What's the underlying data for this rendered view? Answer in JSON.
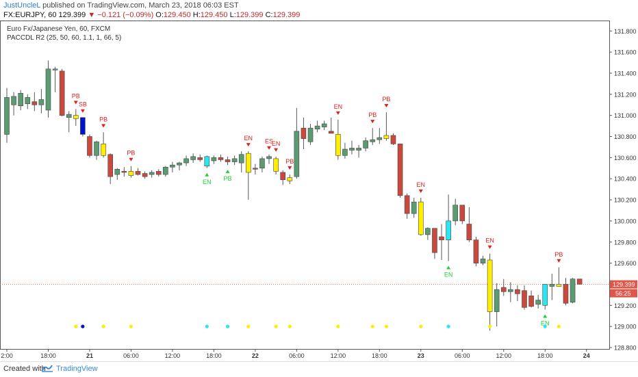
{
  "header": {
    "author": "JustUncleL",
    "published": "published on TradingView.com, March 23, 2018 06:03 EST",
    "symbol": "FX:EURJPY, 60",
    "last": "129.399",
    "change": "▼ −0.121 (−0.09%)",
    "open_label": "O:",
    "open": "129.450",
    "high_label": "H:",
    "high": "129.450",
    "low_label": "L:",
    "low": "129.399",
    "close_label": "C:",
    "close": "129.399"
  },
  "legend": {
    "instrument": "Euro Fx/Japanese Yen, 60, FXCM",
    "indicator": "PACCDL R2 (25, 50, 60, 1.1, 1, 66, 5)"
  },
  "footer": {
    "created": "Created with",
    "brand": "TradingView"
  },
  "colors": {
    "up": "#5b9b72",
    "down": "#c9493d",
    "yellow": "#ffee00",
    "cyan": "#29e6f0",
    "blue": "#0014c8",
    "sell_marker": "#e0201b",
    "buy_marker": "#1ed030",
    "price_line": "#e06050",
    "price_badge": "#e0574a"
  },
  "chart_data": {
    "type": "candlestick",
    "y_ticks": [
      "131.800",
      "131.600",
      "131.400",
      "131.200",
      "131.000",
      "130.800",
      "130.600",
      "130.400",
      "130.200",
      "130.000",
      "129.800",
      "129.600",
      "129.399",
      "129.200",
      "129.000",
      "128.800"
    ],
    "ylim": [
      128.8,
      131.86
    ],
    "x_ticks": [
      "2:00",
      "18:00",
      "21",
      "06:00",
      "12:00",
      "18:00",
      "22",
      "06:00",
      "12:00",
      "18:00",
      "23",
      "06:00",
      "12:00",
      "18:00",
      "24"
    ],
    "x_tick_bar_index": [
      0,
      6,
      12,
      18,
      24,
      30,
      36,
      42,
      48,
      54,
      60,
      66,
      72,
      78,
      84
    ],
    "last_price": "129.399",
    "time_badge": "56:25",
    "candles": [
      {
        "o": 130.82,
        "h": 131.26,
        "l": 130.74,
        "c": 131.17,
        "k": "up"
      },
      {
        "o": 131.1,
        "h": 131.22,
        "l": 131.0,
        "c": 131.18,
        "k": "up"
      },
      {
        "o": 131.09,
        "h": 131.24,
        "l": 131.05,
        "c": 131.21,
        "k": "up"
      },
      {
        "o": 131.11,
        "h": 131.2,
        "l": 131.06,
        "c": 131.17,
        "k": "up"
      },
      {
        "o": 131.1,
        "h": 131.22,
        "l": 131.04,
        "c": 131.13,
        "k": "down"
      },
      {
        "o": 131.1,
        "h": 131.25,
        "l": 131.02,
        "c": 131.15,
        "k": "up"
      },
      {
        "o": 131.05,
        "h": 131.52,
        "l": 130.98,
        "c": 131.44,
        "k": "up"
      },
      {
        "o": 131.44,
        "h": 131.46,
        "l": 131.22,
        "c": 131.43,
        "k": "up"
      },
      {
        "o": 131.42,
        "h": 131.44,
        "l": 130.99,
        "c": 131.0,
        "k": "down"
      },
      {
        "o": 130.98,
        "h": 131.04,
        "l": 130.84,
        "c": 131.01,
        "k": "up"
      },
      {
        "o": 131.0,
        "h": 131.06,
        "l": 130.9,
        "c": 130.97,
        "k": "yellow"
      },
      {
        "o": 130.98,
        "h": 130.98,
        "l": 130.8,
        "c": 130.82,
        "k": "blue"
      },
      {
        "o": 130.8,
        "h": 130.82,
        "l": 130.6,
        "c": 130.62,
        "k": "down"
      },
      {
        "o": 130.62,
        "h": 130.76,
        "l": 130.58,
        "c": 130.75,
        "k": "up"
      },
      {
        "o": 130.73,
        "h": 130.84,
        "l": 130.6,
        "c": 130.62,
        "k": "yellow"
      },
      {
        "o": 130.63,
        "h": 130.64,
        "l": 130.35,
        "c": 130.42,
        "k": "down"
      },
      {
        "o": 130.44,
        "h": 130.5,
        "l": 130.39,
        "c": 130.49,
        "k": "up"
      },
      {
        "o": 130.46,
        "h": 130.51,
        "l": 130.42,
        "c": 130.47,
        "k": "down"
      },
      {
        "o": 130.47,
        "h": 130.52,
        "l": 130.41,
        "c": 130.43,
        "k": "yellow"
      },
      {
        "o": 130.47,
        "h": 130.5,
        "l": 130.43,
        "c": 130.44,
        "k": "down"
      },
      {
        "o": 130.45,
        "h": 130.47,
        "l": 130.4,
        "c": 130.42,
        "k": "down"
      },
      {
        "o": 130.44,
        "h": 130.48,
        "l": 130.41,
        "c": 130.46,
        "k": "up"
      },
      {
        "o": 130.47,
        "h": 130.49,
        "l": 130.42,
        "c": 130.44,
        "k": "down"
      },
      {
        "o": 130.44,
        "h": 130.52,
        "l": 130.42,
        "c": 130.51,
        "k": "up"
      },
      {
        "o": 130.51,
        "h": 130.56,
        "l": 130.46,
        "c": 130.53,
        "k": "up"
      },
      {
        "o": 130.53,
        "h": 130.56,
        "l": 130.48,
        "c": 130.55,
        "k": "up"
      },
      {
        "o": 130.55,
        "h": 130.62,
        "l": 130.52,
        "c": 130.59,
        "k": "up"
      },
      {
        "o": 130.58,
        "h": 130.64,
        "l": 130.55,
        "c": 130.61,
        "k": "up"
      },
      {
        "o": 130.6,
        "h": 130.63,
        "l": 130.56,
        "c": 130.58,
        "k": "down"
      },
      {
        "o": 130.52,
        "h": 130.62,
        "l": 130.5,
        "c": 130.61,
        "k": "cyan"
      },
      {
        "o": 130.57,
        "h": 130.62,
        "l": 130.54,
        "c": 130.6,
        "k": "up"
      },
      {
        "o": 130.6,
        "h": 130.63,
        "l": 130.56,
        "c": 130.58,
        "k": "down"
      },
      {
        "o": 130.58,
        "h": 130.61,
        "l": 130.53,
        "c": 130.56,
        "k": "down"
      },
      {
        "o": 130.56,
        "h": 130.62,
        "l": 130.53,
        "c": 130.59,
        "k": "up"
      },
      {
        "o": 130.55,
        "h": 130.66,
        "l": 130.46,
        "c": 130.63,
        "k": "up"
      },
      {
        "o": 130.64,
        "h": 130.66,
        "l": 130.2,
        "c": 130.46,
        "k": "yellow"
      },
      {
        "o": 130.5,
        "h": 130.54,
        "l": 130.44,
        "c": 130.49,
        "k": "down"
      },
      {
        "o": 130.5,
        "h": 130.61,
        "l": 130.46,
        "c": 130.59,
        "k": "up"
      },
      {
        "o": 130.59,
        "h": 130.63,
        "l": 130.54,
        "c": 130.61,
        "k": "up"
      },
      {
        "o": 130.59,
        "h": 130.61,
        "l": 130.44,
        "c": 130.47,
        "k": "yellow"
      },
      {
        "o": 130.46,
        "h": 130.48,
        "l": 130.34,
        "c": 130.39,
        "k": "down"
      },
      {
        "o": 130.38,
        "h": 130.44,
        "l": 130.35,
        "c": 130.41,
        "k": "yellow"
      },
      {
        "o": 130.42,
        "h": 131.07,
        "l": 130.4,
        "c": 130.85,
        "k": "up"
      },
      {
        "o": 130.78,
        "h": 130.98,
        "l": 130.68,
        "c": 130.88,
        "k": "down"
      },
      {
        "o": 130.75,
        "h": 130.92,
        "l": 130.72,
        "c": 130.88,
        "k": "up"
      },
      {
        "o": 130.87,
        "h": 130.95,
        "l": 130.84,
        "c": 130.9,
        "k": "up"
      },
      {
        "o": 130.89,
        "h": 130.95,
        "l": 130.86,
        "c": 130.92,
        "k": "up"
      },
      {
        "o": 130.85,
        "h": 130.98,
        "l": 130.83,
        "c": 130.83,
        "k": "down"
      },
      {
        "o": 130.82,
        "h": 130.96,
        "l": 130.58,
        "c": 130.62,
        "k": "yellow"
      },
      {
        "o": 130.62,
        "h": 130.74,
        "l": 130.59,
        "c": 130.68,
        "k": "up"
      },
      {
        "o": 130.69,
        "h": 130.76,
        "l": 130.63,
        "c": 130.67,
        "k": "up"
      },
      {
        "o": 130.67,
        "h": 130.72,
        "l": 130.6,
        "c": 130.69,
        "k": "up"
      },
      {
        "o": 130.69,
        "h": 130.79,
        "l": 130.66,
        "c": 130.76,
        "k": "up"
      },
      {
        "o": 130.75,
        "h": 130.88,
        "l": 130.72,
        "c": 130.77,
        "k": "up"
      },
      {
        "o": 130.77,
        "h": 130.88,
        "l": 130.73,
        "c": 130.79,
        "k": "up"
      },
      {
        "o": 130.78,
        "h": 131.03,
        "l": 130.76,
        "c": 130.81,
        "k": "yellow"
      },
      {
        "o": 130.81,
        "h": 130.83,
        "l": 130.72,
        "c": 130.73,
        "k": "down"
      },
      {
        "o": 130.73,
        "h": 130.73,
        "l": 130.22,
        "c": 130.24,
        "k": "down"
      },
      {
        "o": 130.24,
        "h": 130.26,
        "l": 130.02,
        "c": 130.07,
        "k": "down"
      },
      {
        "o": 130.07,
        "h": 130.22,
        "l": 130.03,
        "c": 130.18,
        "k": "up"
      },
      {
        "o": 130.18,
        "h": 130.22,
        "l": 129.86,
        "c": 129.87,
        "k": "yellow"
      },
      {
        "o": 129.87,
        "h": 129.94,
        "l": 129.82,
        "c": 129.93,
        "k": "up"
      },
      {
        "o": 129.93,
        "h": 129.93,
        "l": 129.64,
        "c": 129.7,
        "k": "down"
      },
      {
        "o": 129.82,
        "h": 129.97,
        "l": 129.63,
        "c": 129.85,
        "k": "down"
      },
      {
        "o": 129.82,
        "h": 130.25,
        "l": 129.62,
        "c": 130.0,
        "k": "cyan"
      },
      {
        "o": 130.0,
        "h": 130.21,
        "l": 129.96,
        "c": 130.15,
        "k": "up"
      },
      {
        "o": 130.15,
        "h": 130.15,
        "l": 129.97,
        "c": 130.0,
        "k": "down"
      },
      {
        "o": 129.97,
        "h": 130.13,
        "l": 129.8,
        "c": 129.82,
        "k": "down"
      },
      {
        "o": 129.82,
        "h": 129.85,
        "l": 129.57,
        "c": 129.6,
        "k": "down"
      },
      {
        "o": 129.6,
        "h": 129.67,
        "l": 129.58,
        "c": 129.64,
        "k": "up"
      },
      {
        "o": 129.63,
        "h": 129.69,
        "l": 128.96,
        "c": 129.14,
        "k": "yellow"
      },
      {
        "o": 129.14,
        "h": 129.41,
        "l": 129.0,
        "c": 129.35,
        "k": "up"
      },
      {
        "o": 129.37,
        "h": 129.45,
        "l": 129.29,
        "c": 129.33,
        "k": "down"
      },
      {
        "o": 129.33,
        "h": 129.42,
        "l": 129.23,
        "c": 129.35,
        "k": "up"
      },
      {
        "o": 129.35,
        "h": 129.39,
        "l": 129.24,
        "c": 129.31,
        "k": "down"
      },
      {
        "o": 129.34,
        "h": 129.39,
        "l": 129.16,
        "c": 129.18,
        "k": "down"
      },
      {
        "o": 129.29,
        "h": 129.34,
        "l": 129.18,
        "c": 129.19,
        "k": "down"
      },
      {
        "o": 129.21,
        "h": 129.3,
        "l": 129.17,
        "c": 129.25,
        "k": "up"
      },
      {
        "o": 129.2,
        "h": 129.4,
        "l": 129.16,
        "c": 129.4,
        "k": "cyan"
      },
      {
        "o": 129.38,
        "h": 129.5,
        "l": 129.25,
        "c": 129.4,
        "k": "up"
      },
      {
        "o": 129.4,
        "h": 129.56,
        "l": 129.38,
        "c": 129.38,
        "k": "yellow"
      },
      {
        "o": 129.4,
        "h": 129.46,
        "l": 129.2,
        "c": 129.22,
        "k": "down"
      },
      {
        "o": 129.23,
        "h": 129.46,
        "l": 129.22,
        "c": 129.45,
        "k": "up"
      },
      {
        "o": 129.45,
        "h": 129.45,
        "l": 129.4,
        "c": 129.4,
        "k": "down"
      }
    ],
    "annotations": [
      {
        "bar": 10,
        "label": "PB",
        "dir": "down"
      },
      {
        "bar": 11,
        "label": "SB",
        "dir": "down"
      },
      {
        "bar": 14,
        "label": "PB",
        "dir": "down"
      },
      {
        "bar": 18,
        "label": "PB",
        "dir": "down"
      },
      {
        "bar": 29,
        "label": "EN",
        "dir": "up"
      },
      {
        "bar": 32,
        "label": "PB",
        "dir": "up"
      },
      {
        "bar": 35,
        "label": "EN",
        "dir": "down"
      },
      {
        "bar": 38,
        "label": "ES",
        "dir": "down"
      },
      {
        "bar": 39,
        "label": "EN",
        "dir": "down"
      },
      {
        "bar": 41,
        "label": "PB",
        "dir": "down"
      },
      {
        "bar": 48,
        "label": "EN",
        "dir": "down"
      },
      {
        "bar": 53,
        "label": "PB",
        "dir": "down"
      },
      {
        "bar": 55,
        "label": "PB",
        "dir": "down"
      },
      {
        "bar": 60,
        "label": "EN",
        "dir": "down"
      },
      {
        "bar": 64,
        "label": "EN",
        "dir": "up"
      },
      {
        "bar": 70,
        "label": "EN",
        "dir": "down"
      },
      {
        "bar": 78,
        "label": "EN",
        "dir": "up"
      },
      {
        "bar": 80,
        "label": "PB",
        "dir": "down"
      }
    ],
    "dots_level": 129.0,
    "dots": [
      {
        "bar": 10,
        "k": "yellow"
      },
      {
        "bar": 11,
        "k": "blue"
      },
      {
        "bar": 14,
        "k": "yellow"
      },
      {
        "bar": 18,
        "k": "yellow"
      },
      {
        "bar": 29,
        "k": "cyan"
      },
      {
        "bar": 32,
        "k": "cyan"
      },
      {
        "bar": 35,
        "k": "yellow"
      },
      {
        "bar": 39,
        "k": "yellow"
      },
      {
        "bar": 41,
        "k": "yellow"
      },
      {
        "bar": 48,
        "k": "yellow"
      },
      {
        "bar": 53,
        "k": "yellow"
      },
      {
        "bar": 55,
        "k": "yellow"
      },
      {
        "bar": 60,
        "k": "yellow"
      },
      {
        "bar": 64,
        "k": "cyan"
      },
      {
        "bar": 70,
        "k": "yellow"
      },
      {
        "bar": 78,
        "k": "cyan"
      },
      {
        "bar": 80,
        "k": "yellow"
      }
    ]
  }
}
